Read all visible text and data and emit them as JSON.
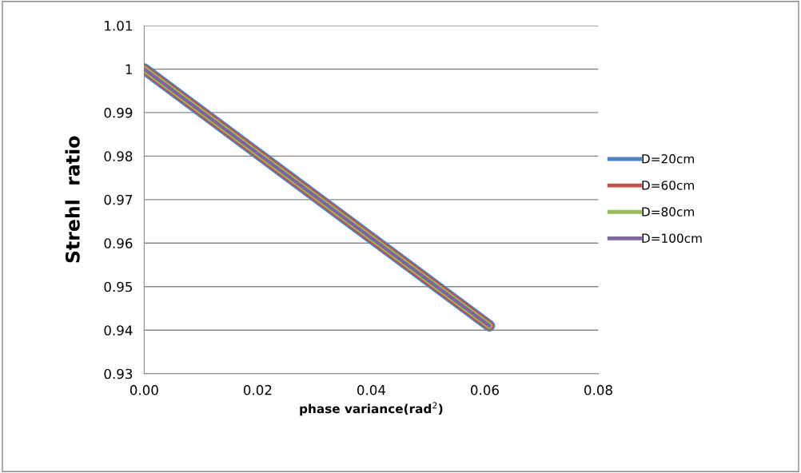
{
  "chart_data": {
    "type": "line",
    "xlabel": "phase variance(rad$^{2}$)",
    "ylabel": "Strehl  ratio",
    "x": [
      0,
      0.0608
    ],
    "series": [
      {
        "name": "D=20cm",
        "color": "#4f81bd",
        "values": [
          1.0,
          0.941
        ]
      },
      {
        "name": "D=60cm",
        "color": "#c0504d",
        "values": [
          1.0,
          0.941
        ]
      },
      {
        "name": "D=80cm",
        "color": "#9bbb59",
        "values": [
          1.0,
          0.941
        ]
      },
      {
        "name": "D=100cm",
        "color": "#8064a2",
        "values": [
          1.0,
          0.941
        ]
      }
    ],
    "xlim": [
      0,
      0.08
    ],
    "xticks": [
      {
        "value": 0,
        "label": "0.00"
      },
      {
        "value": 0.02,
        "label": "0.02"
      },
      {
        "value": 0.04,
        "label": "0.04"
      },
      {
        "value": 0.06,
        "label": "0.06"
      },
      {
        "value": 0.08,
        "label": "0.08"
      }
    ],
    "ylim": [
      0.93,
      1.01
    ],
    "yticks": [
      0.93,
      0.94,
      0.95,
      0.96,
      0.97,
      0.98,
      0.99,
      1,
      1.01
    ],
    "grid": "y",
    "legend": "right",
    "marker": "none",
    "line_style": "solid"
  }
}
